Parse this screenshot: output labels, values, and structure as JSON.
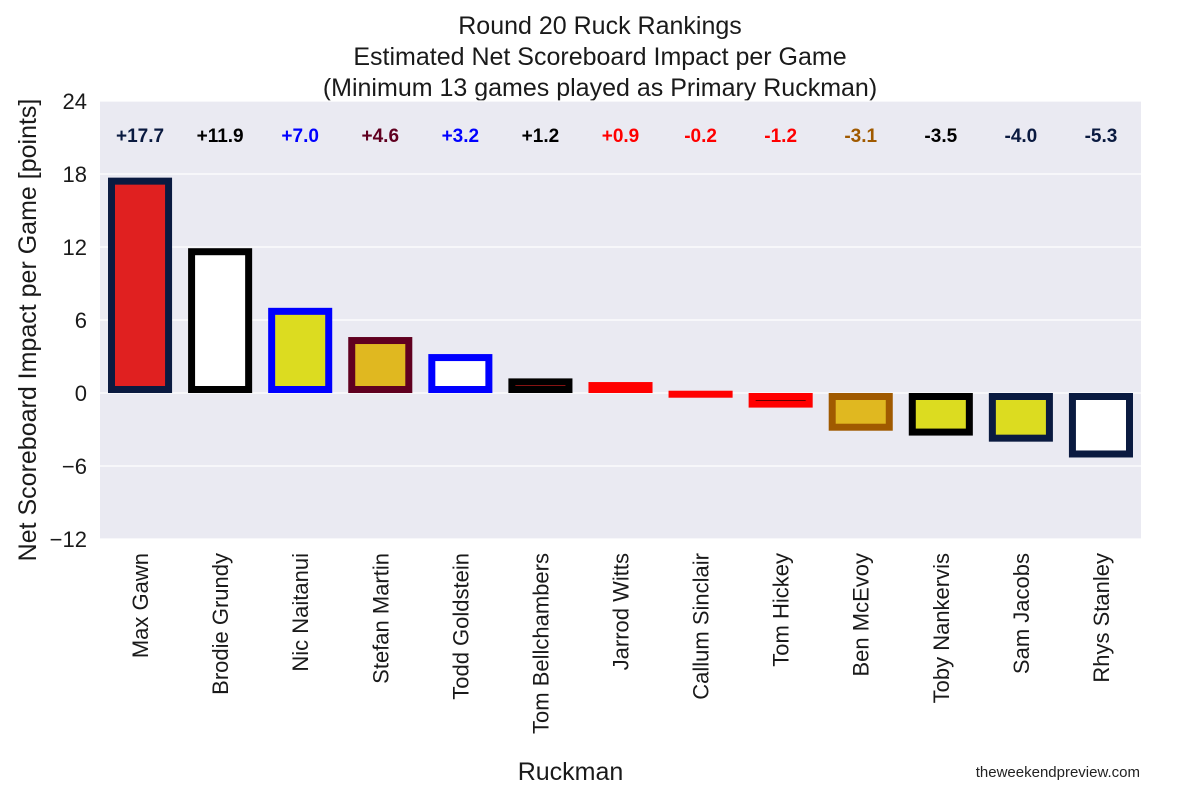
{
  "chart_data": {
    "type": "bar",
    "title": [
      "Round 20 Ruck Rankings",
      "Estimated Net Scoreboard Impact per Game",
      "(Minimum 13 games played as Primary Ruckman)"
    ],
    "xlabel": "Ruckman",
    "ylabel": "Net Scoreboard Impact per Game [points]",
    "ylim": [
      -12,
      24
    ],
    "yticks": [
      "−12",
      "−6",
      "0",
      "6",
      "12",
      "18",
      "24"
    ],
    "ytick_values": [
      -12,
      -6,
      0,
      6,
      12,
      18,
      24
    ],
    "grid": true,
    "categories": [
      "Max Gawn",
      "Brodie Grundy",
      "Nic Naitanui",
      "Stefan Martin",
      "Todd Goldstein",
      "Tom Bellchambers",
      "Jarrod Witts",
      "Callum Sinclair",
      "Tom Hickey",
      "Ben McEvoy",
      "Toby Nankervis",
      "Sam Jacobs",
      "Rhys Stanley"
    ],
    "values": [
      17.7,
      11.9,
      7.0,
      4.6,
      3.2,
      1.2,
      0.9,
      -0.2,
      -1.2,
      -3.1,
      -3.5,
      -4.0,
      -5.3
    ],
    "value_labels": [
      "+17.7",
      "+11.9",
      "+7.0",
      "+4.6",
      "+3.2",
      "+1.2",
      "+0.9",
      "-0.2",
      "-1.2",
      "-3.1",
      "-3.5",
      "-4.0",
      "-5.3"
    ],
    "fill_colors": [
      "#e02020",
      "#ffffff",
      "#dcdc20",
      "#e0b820",
      "#ffffff",
      "#e02020",
      "#e0c020",
      "#e02020",
      "#000000",
      "#e0b820",
      "#dcdc20",
      "#dcdc20",
      "#ffffff"
    ],
    "edge_colors": [
      "#0a1a40",
      "#000000",
      "#0000ff",
      "#600020",
      "#0000ff",
      "#000000",
      "#ff0000",
      "#ff0000",
      "#ff0000",
      "#a05a00",
      "#000000",
      "#0a1a40",
      "#0a1a40"
    ],
    "label_colors": [
      "#0a1a40",
      "#000000",
      "#0000ff",
      "#600020",
      "#0000ff",
      "#000000",
      "#ff0000",
      "#ff0000",
      "#ff0000",
      "#a05a00",
      "#000000",
      "#0a1a40",
      "#0a1a40"
    ]
  },
  "watermark": "theweekendpreview.com",
  "colors": {
    "plot_background": "#eaeaf2",
    "gridline": "#ffffff"
  }
}
